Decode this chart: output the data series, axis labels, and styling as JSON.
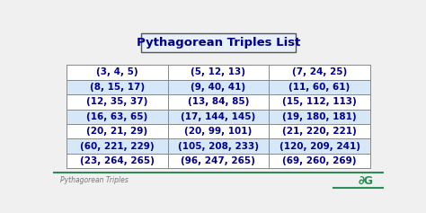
{
  "title": "Pythagorean Triples List",
  "footer_text": "Pythagorean Triples",
  "bg_color": "#f0f0f0",
  "table_bg": "#ffffff",
  "table_data": [
    [
      "(3, 4, 5)",
      "(5, 12, 13)",
      "(7, 24, 25)"
    ],
    [
      "(8, 15, 17)",
      "(9, 40, 41)",
      "(11, 60, 61)"
    ],
    [
      "(12, 35, 37)",
      "(13, 84, 85)",
      "(15, 112, 113)"
    ],
    [
      "(16, 63, 65)",
      "(17, 144, 145)",
      "(19, 180, 181)"
    ],
    [
      "(20, 21, 29)",
      "(20, 99, 101)",
      "(21, 220, 221)"
    ],
    [
      "(60, 221, 229)",
      "(105, 208, 233)",
      "(120, 209, 241)"
    ],
    [
      "(23, 264, 265)",
      "(96, 247, 265)",
      "(69, 260, 269)"
    ]
  ],
  "row_colors": [
    "#ffffff",
    "#d6e8f7",
    "#ffffff",
    "#d6e8f7",
    "#ffffff",
    "#d6e8f7",
    "#ffffff"
  ],
  "title_box_fill": "#e8f0fb",
  "title_box_edge": "#555555",
  "table_edge_color": "#888888",
  "text_color": "#00008b",
  "footer_color": "#777777",
  "gg_color": "#2e8b57",
  "title_fontsize": 9.5,
  "cell_fontsize": 7.5,
  "footer_fontsize": 5.5,
  "gg_fontsize": 9
}
